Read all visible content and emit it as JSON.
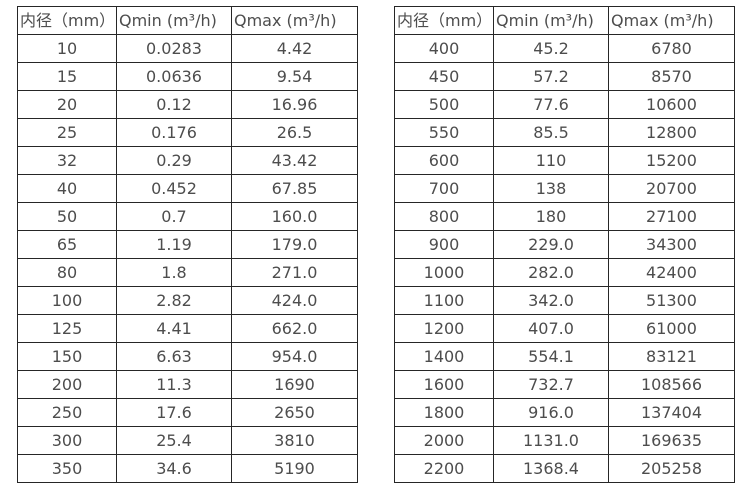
{
  "style": {
    "text_color": "#4d4d4d",
    "border_color": "#262626",
    "background_color": "#ffffff"
  },
  "tables": [
    {
      "name": "flow-table-small-diameters",
      "headers": [
        "内径（mm）",
        "Qmin (m³/h)",
        "Qmax (m³/h)"
      ],
      "rows": [
        [
          "10",
          "0.0283",
          "4.42"
        ],
        [
          "15",
          "0.0636",
          "9.54"
        ],
        [
          "20",
          "0.12",
          "16.96"
        ],
        [
          "25",
          "0.176",
          "26.5"
        ],
        [
          "32",
          "0.29",
          "43.42"
        ],
        [
          "40",
          "0.452",
          "67.85"
        ],
        [
          "50",
          "0.7",
          "160.0"
        ],
        [
          "65",
          "1.19",
          "179.0"
        ],
        [
          "80",
          "1.8",
          "271.0"
        ],
        [
          "100",
          "2.82",
          "424.0"
        ],
        [
          "125",
          "4.41",
          "662.0"
        ],
        [
          "150",
          "6.63",
          "954.0"
        ],
        [
          "200",
          "11.3",
          "1690"
        ],
        [
          "250",
          "17.6",
          "2650"
        ],
        [
          "300",
          "25.4",
          "3810"
        ],
        [
          "350",
          "34.6",
          "5190"
        ]
      ]
    },
    {
      "name": "flow-table-large-diameters",
      "headers": [
        "内径（mm）",
        "Qmin (m³/h)",
        "Qmax (m³/h)"
      ],
      "rows": [
        [
          "400",
          "45.2",
          "6780"
        ],
        [
          "450",
          "57.2",
          "8570"
        ],
        [
          "500",
          "77.6",
          "10600"
        ],
        [
          "550",
          "85.5",
          "12800"
        ],
        [
          "600",
          "110",
          "15200"
        ],
        [
          "700",
          "138",
          "20700"
        ],
        [
          "800",
          "180",
          "27100"
        ],
        [
          "900",
          "229.0",
          "34300"
        ],
        [
          "1000",
          "282.0",
          "42400"
        ],
        [
          "1100",
          "342.0",
          "51300"
        ],
        [
          "1200",
          "407.0",
          "61000"
        ],
        [
          "1400",
          "554.1",
          "83121"
        ],
        [
          "1600",
          "732.7",
          "108566"
        ],
        [
          "1800",
          "916.0",
          "137404"
        ],
        [
          "2000",
          "1131.0",
          "169635"
        ],
        [
          "2200",
          "1368.4",
          "205258"
        ]
      ]
    }
  ]
}
